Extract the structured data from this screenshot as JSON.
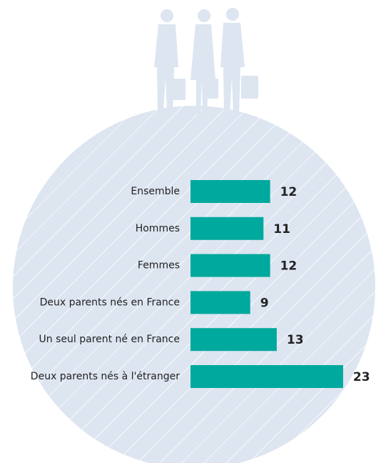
{
  "chart_data": {
    "type": "bar",
    "orientation": "horizontal",
    "categories": [
      "Ensemble",
      "Hommes",
      "Femmes",
      "Deux parents nés en France",
      "Un seul parent né en France",
      "Deux parents nés à l'étranger"
    ],
    "values": [
      12,
      11,
      12,
      9,
      13,
      23
    ],
    "color": "#00a99d"
  }
}
